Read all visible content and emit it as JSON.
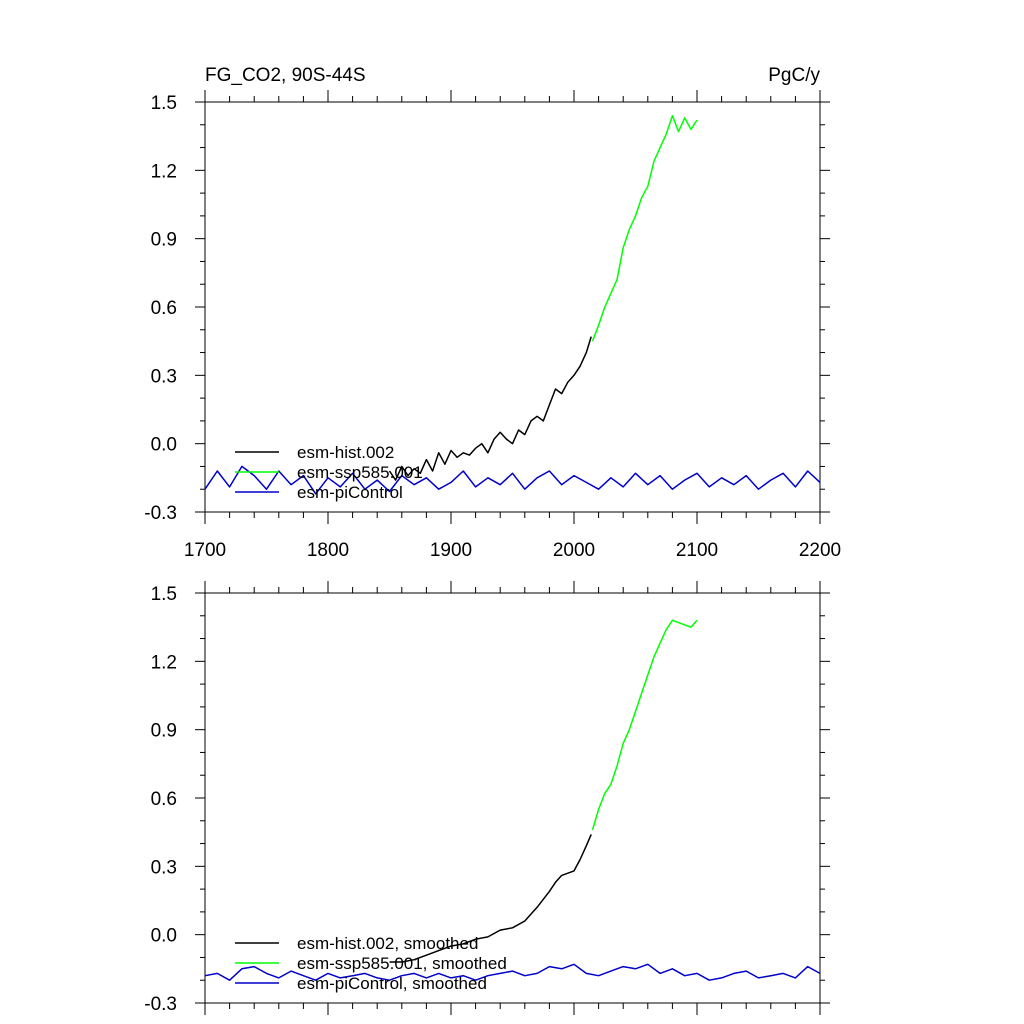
{
  "chart_data": [
    {
      "type": "line",
      "title_left": "FG_CO2, 90S-44S",
      "title_right": "PgC/y",
      "xlim": [
        1700,
        2200
      ],
      "ylim": [
        -0.3,
        1.5
      ],
      "xticks": [
        "1700",
        "1800",
        "1900",
        "2000",
        "2100",
        "2200"
      ],
      "yticks": [
        "-0.3",
        "0.0",
        "0.3",
        "0.6",
        "0.9",
        "1.2",
        "1.5"
      ],
      "legend_position": "bottom-left",
      "series": [
        {
          "name": "esm-hist.002",
          "color": "#000000",
          "x": [
            1850,
            1855,
            1860,
            1865,
            1870,
            1875,
            1880,
            1885,
            1890,
            1895,
            1900,
            1905,
            1910,
            1915,
            1920,
            1925,
            1930,
            1935,
            1940,
            1945,
            1950,
            1955,
            1960,
            1965,
            1970,
            1975,
            1980,
            1985,
            1990,
            1995,
            2000,
            2005,
            2010,
            2014
          ],
          "y": [
            -0.12,
            -0.16,
            -0.1,
            -0.14,
            -0.11,
            -0.13,
            -0.07,
            -0.12,
            -0.04,
            -0.09,
            -0.03,
            -0.06,
            -0.04,
            -0.05,
            -0.02,
            0.0,
            -0.04,
            0.02,
            0.05,
            0.02,
            0.0,
            0.06,
            0.04,
            0.1,
            0.12,
            0.1,
            0.17,
            0.24,
            0.22,
            0.27,
            0.3,
            0.34,
            0.4,
            0.47
          ]
        },
        {
          "name": "esm-ssp585.001",
          "color": "#00ff00",
          "x": [
            2015,
            2020,
            2025,
            2030,
            2035,
            2040,
            2045,
            2050,
            2055,
            2060,
            2065,
            2070,
            2075,
            2080,
            2085,
            2090,
            2095,
            2100
          ],
          "y": [
            0.45,
            0.52,
            0.6,
            0.66,
            0.72,
            0.86,
            0.94,
            1.0,
            1.08,
            1.13,
            1.24,
            1.3,
            1.36,
            1.44,
            1.37,
            1.43,
            1.38,
            1.42
          ]
        },
        {
          "name": "esm-piControl",
          "color": "#0000cc",
          "x": [
            1700,
            1710,
            1720,
            1730,
            1740,
            1750,
            1760,
            1770,
            1780,
            1790,
            1800,
            1810,
            1820,
            1830,
            1840,
            1850,
            1860,
            1870,
            1880,
            1890,
            1900,
            1910,
            1920,
            1930,
            1940,
            1950,
            1960,
            1970,
            1980,
            1990,
            2000,
            2010,
            2020,
            2030,
            2040,
            2050,
            2060,
            2070,
            2080,
            2090,
            2100,
            2110,
            2120,
            2130,
            2140,
            2150,
            2160,
            2170,
            2180,
            2190,
            2200
          ],
          "y": [
            -0.2,
            -0.12,
            -0.19,
            -0.1,
            -0.14,
            -0.2,
            -0.12,
            -0.18,
            -0.14,
            -0.22,
            -0.15,
            -0.19,
            -0.13,
            -0.2,
            -0.16,
            -0.21,
            -0.14,
            -0.18,
            -0.15,
            -0.2,
            -0.17,
            -0.12,
            -0.19,
            -0.15,
            -0.18,
            -0.13,
            -0.2,
            -0.15,
            -0.12,
            -0.18,
            -0.14,
            -0.17,
            -0.2,
            -0.15,
            -0.19,
            -0.13,
            -0.18,
            -0.14,
            -0.2,
            -0.16,
            -0.13,
            -0.19,
            -0.15,
            -0.18,
            -0.14,
            -0.2,
            -0.16,
            -0.13,
            -0.19,
            -0.12,
            -0.17
          ]
        }
      ]
    },
    {
      "type": "line",
      "title_left": "",
      "title_right": "",
      "xlim": [
        1700,
        2200
      ],
      "ylim": [
        -0.3,
        1.5
      ],
      "xticks": [],
      "yticks": [
        "-0.3",
        "0.0",
        "0.3",
        "0.6",
        "0.9",
        "1.2",
        "1.5"
      ],
      "legend_position": "bottom-left",
      "series": [
        {
          "name": "esm-hist.002, smoothed",
          "color": "#000000",
          "x": [
            1850,
            1860,
            1870,
            1880,
            1890,
            1900,
            1910,
            1920,
            1930,
            1940,
            1950,
            1960,
            1970,
            1980,
            1985,
            1990,
            1995,
            2000,
            2005,
            2010,
            2014
          ],
          "y": [
            -0.12,
            -0.12,
            -0.11,
            -0.09,
            -0.07,
            -0.05,
            -0.04,
            -0.02,
            -0.01,
            0.02,
            0.03,
            0.06,
            0.12,
            0.19,
            0.23,
            0.26,
            0.27,
            0.28,
            0.33,
            0.39,
            0.44
          ]
        },
        {
          "name": "esm-ssp585.001, smoothed",
          "color": "#00ff00",
          "x": [
            2015,
            2020,
            2025,
            2030,
            2035,
            2040,
            2045,
            2050,
            2055,
            2060,
            2065,
            2070,
            2075,
            2080,
            2085,
            2090,
            2095,
            2100
          ],
          "y": [
            0.46,
            0.55,
            0.62,
            0.66,
            0.74,
            0.84,
            0.9,
            0.98,
            1.06,
            1.14,
            1.22,
            1.28,
            1.34,
            1.38,
            1.37,
            1.36,
            1.35,
            1.38
          ]
        },
        {
          "name": "esm-piControl, smoothed",
          "color": "#0000cc",
          "x": [
            1700,
            1710,
            1720,
            1730,
            1740,
            1750,
            1760,
            1770,
            1780,
            1790,
            1800,
            1810,
            1820,
            1830,
            1840,
            1850,
            1860,
            1870,
            1880,
            1890,
            1900,
            1910,
            1920,
            1930,
            1940,
            1950,
            1960,
            1970,
            1980,
            1990,
            2000,
            2010,
            2020,
            2030,
            2040,
            2050,
            2060,
            2070,
            2080,
            2090,
            2100,
            2110,
            2120,
            2130,
            2140,
            2150,
            2160,
            2170,
            2180,
            2190,
            2200
          ],
          "y": [
            -0.18,
            -0.17,
            -0.2,
            -0.15,
            -0.14,
            -0.17,
            -0.19,
            -0.16,
            -0.18,
            -0.2,
            -0.17,
            -0.19,
            -0.18,
            -0.17,
            -0.19,
            -0.2,
            -0.18,
            -0.17,
            -0.19,
            -0.17,
            -0.19,
            -0.18,
            -0.2,
            -0.18,
            -0.17,
            -0.16,
            -0.18,
            -0.17,
            -0.14,
            -0.15,
            -0.13,
            -0.17,
            -0.18,
            -0.16,
            -0.14,
            -0.15,
            -0.13,
            -0.17,
            -0.15,
            -0.18,
            -0.17,
            -0.2,
            -0.19,
            -0.17,
            -0.16,
            -0.19,
            -0.18,
            -0.17,
            -0.19,
            -0.14,
            -0.17
          ]
        }
      ]
    }
  ]
}
